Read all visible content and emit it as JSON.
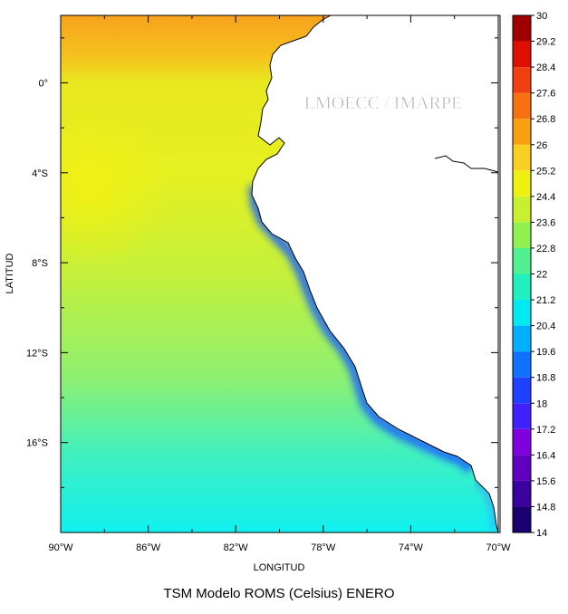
{
  "title": "TSM Modelo ROMS (Celsius) ENERO",
  "watermark": "LMOECC / IMARPE",
  "x_axis": {
    "label": "LONGITUD",
    "lim": [
      -90,
      -70
    ],
    "ticks": [
      {
        "value": -90,
        "label": "90°W"
      },
      {
        "value": -86,
        "label": "86°W"
      },
      {
        "value": -82,
        "label": "82°W"
      },
      {
        "value": -78,
        "label": "78°W"
      },
      {
        "value": -74,
        "label": "74°W"
      },
      {
        "value": -70,
        "label": "70°W"
      }
    ],
    "minor": [
      -88,
      -84,
      -80,
      -76,
      -72
    ]
  },
  "y_axis": {
    "label": "LATITUD",
    "lim": [
      -20,
      3
    ],
    "ticks": [
      {
        "value": 0,
        "label": "0°"
      },
      {
        "value": -4,
        "label": "4°S"
      },
      {
        "value": -8,
        "label": "8°S"
      },
      {
        "value": -12,
        "label": "12°S"
      },
      {
        "value": -16,
        "label": "16°S"
      }
    ],
    "minor": [
      2,
      -2,
      -6,
      -10,
      -14,
      -18
    ]
  },
  "colorbar": {
    "levels": [
      14,
      14.8,
      15.6,
      16.4,
      17.2,
      18,
      18.8,
      19.6,
      20.4,
      21.2,
      22,
      22.8,
      23.6,
      24.4,
      25.2,
      26,
      26.8,
      27.6,
      28.4,
      29.2,
      30
    ],
    "colors": [
      "#1a0070",
      "#3a00a0",
      "#6000c0",
      "#8000e0",
      "#4020ff",
      "#2040ff",
      "#1070ff",
      "#00b0ff",
      "#00e8f0",
      "#20f0c0",
      "#50f090",
      "#90f050",
      "#c8f030",
      "#f0f010",
      "#f8d020",
      "#f8a010",
      "#f87010",
      "#f04010",
      "#e01000",
      "#a00000"
    ]
  }
}
